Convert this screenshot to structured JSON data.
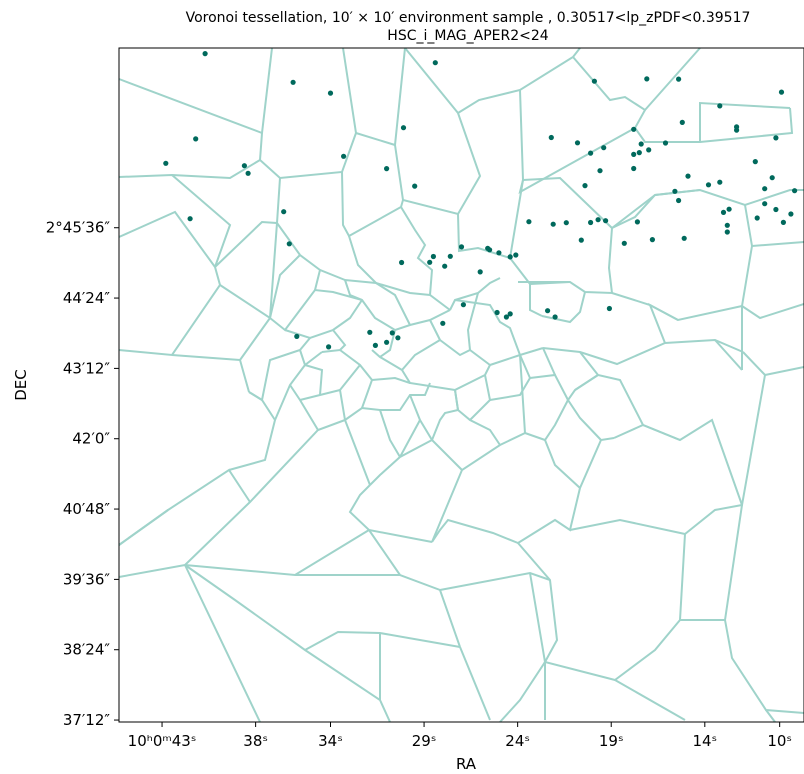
{
  "chart_data": {
    "type": "scatter",
    "title_line1": "Voronoi tessellation, 10′ × 10′ environment sample , 0.30517<lp_zPDF<0.39517",
    "title_line2": "HSC_i_MAG_APER2<24",
    "xlabel": "RA",
    "ylabel": "DEC",
    "x_axis_direction": "decreasing-right",
    "xlim_seconds": [
      45.3,
      8.7
    ],
    "ylim_arcsec_offset": [
      -290,
      400
    ],
    "x_ticks": [
      {
        "value": 43,
        "label": "10ʰ0ᵐ43ˢ"
      },
      {
        "value": 38,
        "label": "38ˢ"
      },
      {
        "value": 34,
        "label": "34ˢ"
      },
      {
        "value": 29,
        "label": "29ˢ"
      },
      {
        "value": 24,
        "label": "24ˢ"
      },
      {
        "value": 19,
        "label": "19ˢ"
      },
      {
        "value": 14,
        "label": "14ˢ"
      },
      {
        "value": 10,
        "label": "10ˢ"
      }
    ],
    "y_ticks": [
      {
        "value": 216,
        "label": "2°45′36″"
      },
      {
        "value": 144,
        "label": "44′24″"
      },
      {
        "value": 72,
        "label": "43′12″"
      },
      {
        "value": 0,
        "label": "42′0″"
      },
      {
        "value": -72,
        "label": "40′48″"
      },
      {
        "value": -144,
        "label": "39′36″"
      },
      {
        "value": -216,
        "label": "38′24″"
      },
      {
        "value": -288,
        "label": "37′12″"
      }
    ],
    "point_color": "#00695c",
    "edge_color": "#9fd3ca",
    "points": [
      [
        40.7,
        394.3
      ],
      [
        36.0,
        364.9
      ],
      [
        34.0,
        353.8
      ],
      [
        30.1,
        318.4
      ],
      [
        33.3,
        289.1
      ],
      [
        42.8,
        282.0
      ],
      [
        41.2,
        306.9
      ],
      [
        38.4,
        271.7
      ],
      [
        38.6,
        279.5
      ],
      [
        36.5,
        232.4
      ],
      [
        36.2,
        199.6
      ],
      [
        41.5,
        225.2
      ],
      [
        31.0,
        276.5
      ],
      [
        29.5,
        258.6
      ],
      [
        28.4,
        384.9
      ],
      [
        19.9,
        366.0
      ],
      [
        15.4,
        368.2
      ],
      [
        20.8,
        302.9
      ],
      [
        17.8,
        316.8
      ],
      [
        17.0,
        295.7
      ],
      [
        13.2,
        340.7
      ],
      [
        12.3,
        316.0
      ],
      [
        12.3,
        319.2
      ],
      [
        11.3,
        283.7
      ],
      [
        10.2,
        308.0
      ],
      [
        9.9,
        354.9
      ],
      [
        17.8,
        291.1
      ],
      [
        20.4,
        259.1
      ],
      [
        22.2,
        308.4
      ],
      [
        17.5,
        292.9
      ],
      [
        17.1,
        368.4
      ],
      [
        17.4,
        301.7
      ],
      [
        15.2,
        323.8
      ],
      [
        16.1,
        302.7
      ],
      [
        14.9,
        268.9
      ],
      [
        13.8,
        260.0
      ],
      [
        19.4,
        297.9
      ],
      [
        20.1,
        292.4
      ],
      [
        17.8,
        276.6
      ],
      [
        13.2,
        262.6
      ],
      [
        19.6,
        274.4
      ],
      [
        10.4,
        267.2
      ],
      [
        9.2,
        253.9
      ],
      [
        11.2,
        226.0
      ],
      [
        10.8,
        256.0
      ],
      [
        15.4,
        243.9
      ],
      [
        15.6,
        253.3
      ],
      [
        10.8,
        240.6
      ],
      [
        13.0,
        231.7
      ],
      [
        10.2,
        234.7
      ],
      [
        9.4,
        230.1
      ],
      [
        9.8,
        221.5
      ],
      [
        12.8,
        218.5
      ],
      [
        12.7,
        235.0
      ],
      [
        17.6,
        222.0
      ],
      [
        19.3,
        223.2
      ],
      [
        19.7,
        224.2
      ],
      [
        20.1,
        221.4
      ],
      [
        21.4,
        221.2
      ],
      [
        23.4,
        222.2
      ],
      [
        22.1,
        219.6
      ],
      [
        12.8,
        211.6
      ],
      [
        15.1,
        205.2
      ],
      [
        16.8,
        203.9
      ],
      [
        18.3,
        200.1
      ],
      [
        20.6,
        203.3
      ],
      [
        24.1,
        188.1
      ],
      [
        24.4,
        186.1
      ],
      [
        25.5,
        193.4
      ],
      [
        25.0,
        190.3
      ],
      [
        27.0,
        196.4
      ],
      [
        25.6,
        194.9
      ],
      [
        27.6,
        186.8
      ],
      [
        28.5,
        186.6
      ],
      [
        30.2,
        180.4
      ],
      [
        28.7,
        180.6
      ],
      [
        27.9,
        176.6
      ],
      [
        26.0,
        170.8
      ],
      [
        19.1,
        133.3
      ],
      [
        22.0,
        124.6
      ],
      [
        24.6,
        124.6
      ],
      [
        24.4,
        127.8
      ],
      [
        22.4,
        131.1
      ],
      [
        25.1,
        129.2
      ],
      [
        26.9,
        137.2
      ],
      [
        28.0,
        118.2
      ],
      [
        31.0,
        98.7
      ],
      [
        34.1,
        94.0
      ],
      [
        35.8,
        104.8
      ],
      [
        31.9,
        108.9
      ],
      [
        30.7,
        108.3
      ],
      [
        30.4,
        103.3
      ],
      [
        31.6,
        95.5
      ]
    ]
  }
}
